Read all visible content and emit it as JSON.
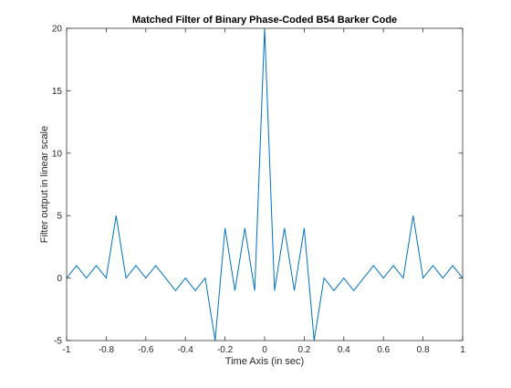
{
  "chart_data": {
    "type": "line",
    "title": "Matched Filter of Binary Phase-Coded B54 Barker Code",
    "xlabel": "Time Axis (in sec)",
    "ylabel": "Filter output in linear scale",
    "xlim": [
      -1,
      1
    ],
    "ylim": [
      -5,
      20
    ],
    "xticks": [
      -1,
      -0.8,
      -0.6,
      -0.4,
      -0.2,
      0,
      0.2,
      0.4,
      0.6,
      0.8,
      1
    ],
    "xtick_labels": [
      "-1",
      "-0.8",
      "-0.6",
      "-0.4",
      "-0.2",
      "0",
      "0.2",
      "0.4",
      "0.6",
      "0.8",
      "1"
    ],
    "yticks": [
      -5,
      0,
      5,
      10,
      15,
      20
    ],
    "ytick_labels": [
      "-5",
      "0",
      "5",
      "10",
      "15",
      "20"
    ],
    "grid": false,
    "box": true,
    "series": [
      {
        "color": "#0072bd",
        "x": [
          -1,
          -0.95,
          -0.9,
          -0.85,
          -0.8,
          -0.75,
          -0.7,
          -0.65,
          -0.6,
          -0.55,
          -0.5,
          -0.45,
          -0.4,
          -0.35,
          -0.3,
          -0.25,
          -0.2,
          -0.15,
          -0.1,
          -0.05,
          0,
          0.05,
          0.1,
          0.15,
          0.2,
          0.25,
          0.3,
          0.35,
          0.4,
          0.45,
          0.5,
          0.55,
          0.6,
          0.65,
          0.7,
          0.75,
          0.8,
          0.85,
          0.9,
          0.95,
          1
        ],
        "y": [
          0,
          1,
          0,
          1,
          0,
          5,
          0,
          1,
          0,
          1,
          0,
          -1,
          0,
          -1,
          0,
          -5,
          4,
          -1,
          4,
          -1,
          20,
          -1,
          4,
          -1,
          4,
          -5,
          0,
          -1,
          0,
          -1,
          0,
          1,
          0,
          1,
          0,
          5,
          0,
          1,
          0,
          1,
          0
        ]
      }
    ]
  }
}
